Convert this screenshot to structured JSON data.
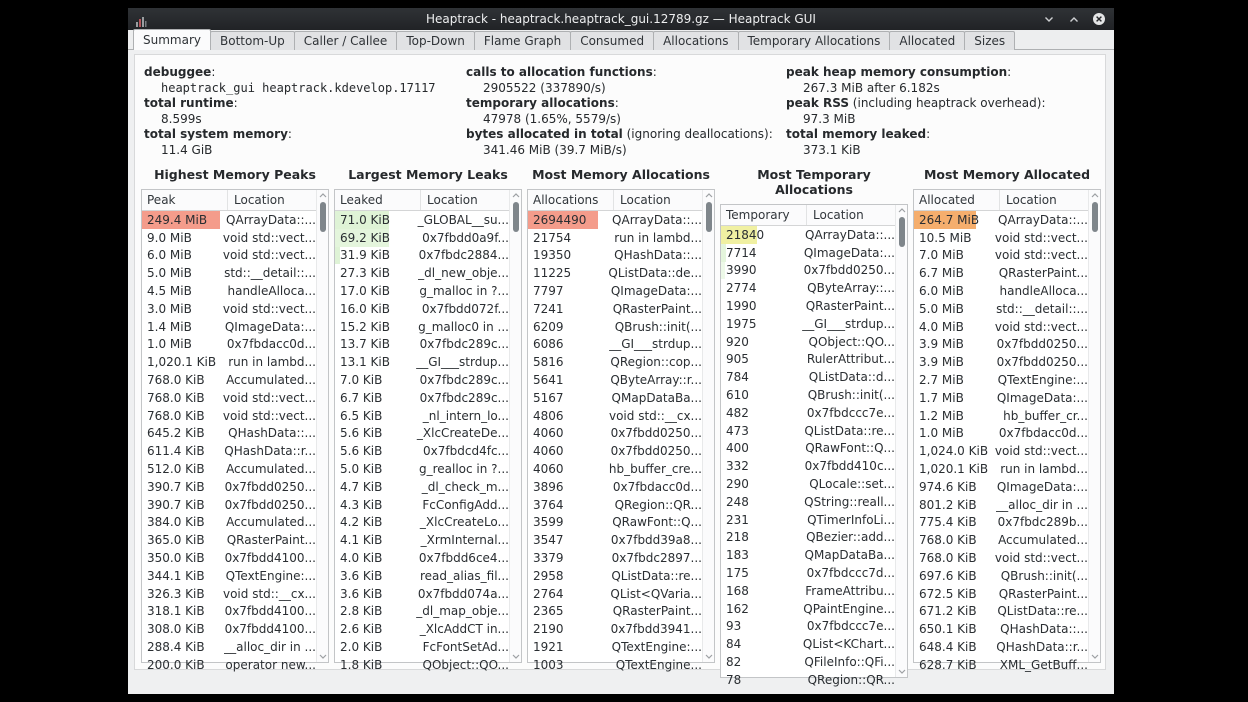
{
  "window": {
    "title": "Heaptrack - heaptrack.heaptrack_gui.12789.gz — Heaptrack GUI",
    "controls": [
      "minimize",
      "maximize",
      "close"
    ]
  },
  "tabs": {
    "active": "Summary",
    "items": [
      "Summary",
      "Bottom-Up",
      "Caller / Callee",
      "Top-Down",
      "Flame Graph",
      "Consumed",
      "Allocations",
      "Temporary Allocations",
      "Allocated",
      "Sizes"
    ]
  },
  "summary": {
    "columns": [
      {
        "items": [
          {
            "label": "debuggee",
            "note": "",
            "value": "heaptrack_gui heaptrack.kdevelop.17117",
            "mono": true
          },
          {
            "label": "total runtime",
            "note": "",
            "value": "8.599s"
          },
          {
            "label": "total system memory",
            "note": "",
            "value": "11.4 GiB"
          }
        ]
      },
      {
        "items": [
          {
            "label": "calls to allocation functions",
            "note": "",
            "value": "2905522 (337890/s)"
          },
          {
            "label": "temporary allocations",
            "note": "",
            "value": "47978 (1.65%, 5579/s)"
          },
          {
            "label": "bytes allocated in total",
            "note": " (ignoring deallocations)",
            "value": "341.46 MiB (39.7 MiB/s)"
          }
        ]
      },
      {
        "items": [
          {
            "label": "peak heap memory consumption",
            "note": "",
            "value": "267.3 MiB after 6.182s"
          },
          {
            "label": "peak RSS",
            "note": " (including heaptrack overhead)",
            "value": "97.3 MiB"
          },
          {
            "label": "total memory leaked",
            "note": "",
            "value": "373.1 KiB"
          }
        ]
      }
    ]
  },
  "colors": {
    "salmon": "#F49C8B",
    "orange": "#F5AE6D",
    "yellow": "#F0F0A2",
    "green1": "#DFF3D6",
    "green2": "#E4F5DC",
    "green3": "#EDF9E8"
  },
  "tables": [
    {
      "title": "Highest Memory Peaks",
      "headers": [
        "Peak",
        "Location"
      ],
      "rows": [
        [
          "249.4 MiB",
          "QArrayData::...",
          "salmon",
          "100%"
        ],
        [
          "9.0 MiB",
          "void std::vect..."
        ],
        [
          "6.0 MiB",
          "void std::vect..."
        ],
        [
          "5.0 MiB",
          "std::__detail::..."
        ],
        [
          "4.5 MiB",
          "handleAlloca..."
        ],
        [
          "3.0 MiB",
          "void std::vect..."
        ],
        [
          "1.4 MiB",
          "QImageData:..."
        ],
        [
          "1.0 MiB",
          "0x7fbdacc0d..."
        ],
        [
          "1,020.1 KiB",
          "run in lambd..."
        ],
        [
          "768.0 KiB",
          "Accumulated..."
        ],
        [
          "768.0 KiB",
          "void std::vect..."
        ],
        [
          "768.0 KiB",
          "void std::vect..."
        ],
        [
          "645.2 KiB",
          "QHashData::..."
        ],
        [
          "611.4 KiB",
          "QHashData::r..."
        ],
        [
          "512.0 KiB",
          "Accumulated..."
        ],
        [
          "390.7 KiB",
          "0x7fbdd0250..."
        ],
        [
          "390.7 KiB",
          "0x7fbdd0250..."
        ],
        [
          "384.0 KiB",
          "Accumulated..."
        ],
        [
          "365.0 KiB",
          "QRasterPaint..."
        ],
        [
          "350.0 KiB",
          "0x7fbdd4100..."
        ],
        [
          "344.1 KiB",
          "QTextEngine:..."
        ],
        [
          "326.3 KiB",
          "void std::__cx..."
        ],
        [
          "318.1 KiB",
          "0x7fbdd4100..."
        ],
        [
          "308.0 KiB",
          "0x7fbdd4100..."
        ],
        [
          "288.4 KiB",
          "__alloc_dir in ..."
        ],
        [
          "200.0 KiB",
          "operator new..."
        ]
      ]
    },
    {
      "title": "Largest Memory Leaks",
      "headers": [
        "Leaked",
        "Location"
      ],
      "rows": [
        [
          "71.0 KiB",
          "_GLOBAL__su...",
          "green1",
          "54px"
        ],
        [
          "69.2 KiB",
          "0x7fbdd0a9f...",
          "green2",
          "54px"
        ],
        [
          "31.9 KiB",
          "0x7fbdc2884...",
          "green1",
          "5px"
        ],
        [
          "27.3 KiB",
          "_dl_new_obje..."
        ],
        [
          "17.0 KiB",
          "g_malloc in ?..."
        ],
        [
          "16.0 KiB",
          "0x7fbdd072f..."
        ],
        [
          "15.2 KiB",
          "g_malloc0 in ..."
        ],
        [
          "13.7 KiB",
          "0x7fbdc289c..."
        ],
        [
          "13.1 KiB",
          "__GI___strdup..."
        ],
        [
          "7.0 KiB",
          "0x7fbdc289c..."
        ],
        [
          "6.7 KiB",
          "0x7fbdc289c..."
        ],
        [
          "6.5 KiB",
          "_nl_intern_lo..."
        ],
        [
          "5.6 KiB",
          "_XlcCreateDe..."
        ],
        [
          "5.6 KiB",
          "0x7fbdcd4fc..."
        ],
        [
          "5.0 KiB",
          "g_realloc in ?..."
        ],
        [
          "4.7 KiB",
          "_dl_check_m..."
        ],
        [
          "4.3 KiB",
          "FcConfigAdd..."
        ],
        [
          "4.2 KiB",
          "_XlcCreateLo..."
        ],
        [
          "4.1 KiB",
          "_XrmInternal..."
        ],
        [
          "4.0 KiB",
          "0x7fbdd6ce4..."
        ],
        [
          "3.6 KiB",
          "read_alias_fil..."
        ],
        [
          "3.6 KiB",
          "0x7fbdd074a..."
        ],
        [
          "2.8 KiB",
          "_dl_map_obje..."
        ],
        [
          "2.6 KiB",
          "_XlcAddCT in..."
        ],
        [
          "2.0 KiB",
          "FcFontSetAd..."
        ],
        [
          "1.8 KiB",
          "QObject::QO..."
        ]
      ]
    },
    {
      "title": "Most Memory Allocations",
      "headers": [
        "Allocations",
        "Location"
      ],
      "rows": [
        [
          "2694490",
          "QArrayData::...",
          "salmon",
          "70px"
        ],
        [
          "21754",
          "run in lambd..."
        ],
        [
          "19350",
          "QHashData::..."
        ],
        [
          "11225",
          "QListData::de..."
        ],
        [
          "7797",
          "QImageData:..."
        ],
        [
          "7241",
          "QRasterPaint..."
        ],
        [
          "6209",
          "QBrush::init(..."
        ],
        [
          "6086",
          "__GI___strdup..."
        ],
        [
          "5816",
          "QRegion::cop..."
        ],
        [
          "5641",
          "QByteArray::r..."
        ],
        [
          "5167",
          "QMapDataBa..."
        ],
        [
          "4806",
          "void std::__cx..."
        ],
        [
          "4060",
          "0x7fbdd0250..."
        ],
        [
          "4060",
          "0x7fbdd0250..."
        ],
        [
          "4060",
          "hb_buffer_cre..."
        ],
        [
          "3896",
          "0x7fbdacc0d..."
        ],
        [
          "3764",
          "QRegion::QR..."
        ],
        [
          "3599",
          "QRawFont::Q..."
        ],
        [
          "3547",
          "0x7fbdd39a8..."
        ],
        [
          "3379",
          "0x7fbdc2897..."
        ],
        [
          "2958",
          "QListData::re..."
        ],
        [
          "2764",
          "QList<QVaria..."
        ],
        [
          "2365",
          "QRasterPaint..."
        ],
        [
          "2190",
          "0x7fbdd3941..."
        ],
        [
          "1921",
          "QTextEngine:..."
        ],
        [
          "1003",
          "QTextEngine..."
        ]
      ]
    },
    {
      "title": "Most Temporary Allocations",
      "headers": [
        "Temporary",
        "Location"
      ],
      "rows": [
        [
          "21840",
          "QArrayData::...",
          "yellow",
          "36px"
        ],
        [
          "7714",
          "QImageData:...",
          "green2",
          "5px"
        ],
        [
          "3990",
          "0x7fbdd0250...",
          "green3",
          "4px"
        ],
        [
          "2774",
          "QByteArray::..."
        ],
        [
          "1990",
          "QRasterPaint..."
        ],
        [
          "1975",
          "__GI___strdup..."
        ],
        [
          "920",
          "QObject::QO..."
        ],
        [
          "905",
          "RulerAttribut..."
        ],
        [
          "784",
          "QListData::d..."
        ],
        [
          "610",
          "QBrush::init(..."
        ],
        [
          "482",
          "0x7fbdccc7e..."
        ],
        [
          "473",
          "QListData::re..."
        ],
        [
          "400",
          "QRawFont::Q..."
        ],
        [
          "332",
          "0x7fbdd410c..."
        ],
        [
          "290",
          "QLocale::set..."
        ],
        [
          "248",
          "QString::reall..."
        ],
        [
          "231",
          "QTimerInfoLi..."
        ],
        [
          "218",
          "QBezier::add..."
        ],
        [
          "183",
          "QMapDataBa..."
        ],
        [
          "175",
          "0x7fbdccc7d..."
        ],
        [
          "168",
          "FrameAttribu..."
        ],
        [
          "162",
          "QPaintEngine..."
        ],
        [
          "93",
          "0x7fbdccc7e..."
        ],
        [
          "84",
          "QList<KChart..."
        ],
        [
          "82",
          "QFileInfo::QFi..."
        ],
        [
          "78",
          "QRegion::QR..."
        ]
      ]
    },
    {
      "title": "Most Memory Allocated",
      "headers": [
        "Allocated",
        "Location"
      ],
      "rows": [
        [
          "264.7 MiB",
          "QArrayData::...",
          "orange",
          "62px"
        ],
        [
          "10.5 MiB",
          "void std::vect..."
        ],
        [
          "7.0 MiB",
          "void std::vect..."
        ],
        [
          "6.7 MiB",
          "QRasterPaint..."
        ],
        [
          "6.0 MiB",
          "handleAlloca..."
        ],
        [
          "5.0 MiB",
          "std::__detail::..."
        ],
        [
          "4.0 MiB",
          "void std::vect..."
        ],
        [
          "3.9 MiB",
          "0x7fbdd0250..."
        ],
        [
          "3.9 MiB",
          "0x7fbdd0250..."
        ],
        [
          "2.7 MiB",
          "QTextEngine:..."
        ],
        [
          "1.7 MiB",
          "QImageData:..."
        ],
        [
          "1.2 MiB",
          "hb_buffer_cr..."
        ],
        [
          "1.0 MiB",
          "0x7fbdacc0d..."
        ],
        [
          "1,024.0 KiB",
          "void std::vect..."
        ],
        [
          "1,020.1 KiB",
          "run in lambd..."
        ],
        [
          "974.6 KiB",
          "QImageData:..."
        ],
        [
          "801.2 KiB",
          "__alloc_dir in ..."
        ],
        [
          "775.4 KiB",
          "0x7fbdc289b..."
        ],
        [
          "768.0 KiB",
          "Accumulated..."
        ],
        [
          "768.0 KiB",
          "void std::vect..."
        ],
        [
          "697.6 KiB",
          "QBrush::init(..."
        ],
        [
          "672.5 KiB",
          "QRasterPaint..."
        ],
        [
          "671.2 KiB",
          "QListData::re..."
        ],
        [
          "650.1 KiB",
          "QHashData::..."
        ],
        [
          "648.4 KiB",
          "QHashData::r..."
        ],
        [
          "628.7 KiB",
          "XML_GetBuff..."
        ]
      ]
    }
  ]
}
